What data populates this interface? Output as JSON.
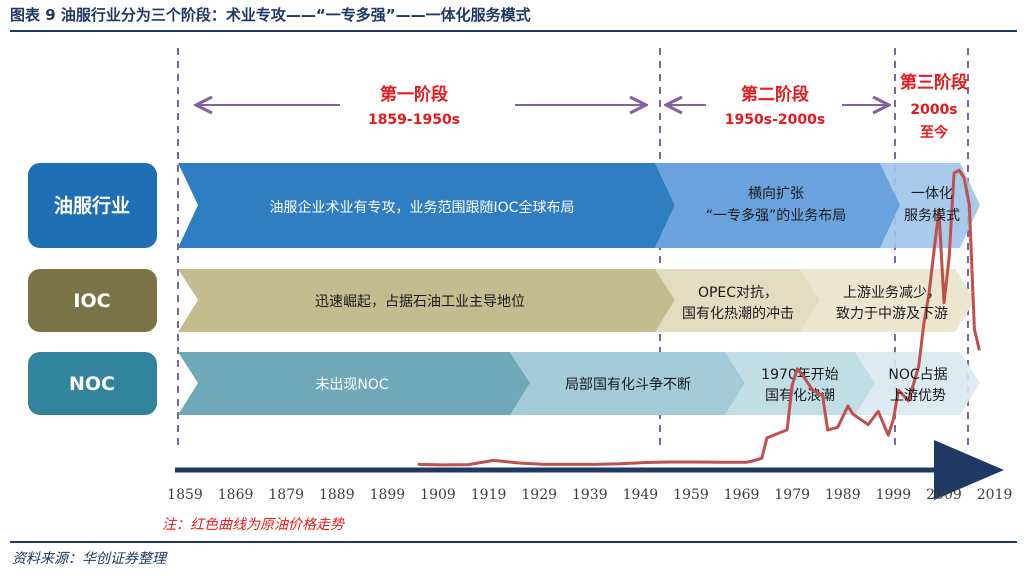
{
  "title": "图表 9 油服行业分为三个阶段：术业专攻——“一专多强”——一体化服务模式",
  "source": "资料来源：华创证券整理",
  "note": "注：红色曲线为原油价格走势",
  "stages": [
    {
      "name": "第一阶段",
      "period": "1859-1950s"
    },
    {
      "name": "第二阶段",
      "period": "1950s-2000s"
    },
    {
      "name": "第三阶段",
      "period_line1": "2000s",
      "period_line2": "至今"
    }
  ],
  "rows": [
    {
      "label": "油服行业",
      "color": "#1f6fb5",
      "arrows": [
        {
          "lines": [
            "油服企业术业有专攻，业务范围跟随IOC全球布局"
          ]
        },
        {
          "lines": [
            "横向扩张",
            "“一专多强”的业务布局"
          ]
        },
        {
          "lines": [
            "一体化",
            "服务模式"
          ]
        }
      ]
    },
    {
      "label": "IOC",
      "color": "#7a7448",
      "arrows": [
        {
          "lines": [
            "迅速崛起，占据石油工业主导地位"
          ]
        },
        {
          "lines": [
            "OPEC对抗，",
            "国有化热潮的冲击"
          ]
        },
        {
          "lines": [
            "上游业务减少，",
            "致力于中游及下游"
          ]
        }
      ]
    },
    {
      "label": "NOC",
      "color": "#31849b",
      "arrows": [
        {
          "lines": [
            "未出现NOC"
          ]
        },
        {
          "lines": [
            "局部国有化斗争不断"
          ]
        },
        {
          "lines": [
            "1970年开始",
            "国有化浪潮"
          ]
        },
        {
          "lines": [
            "NOC占据",
            "上游优势"
          ]
        }
      ]
    }
  ],
  "x_ticks": [
    "1859",
    "1869",
    "1879",
    "1889",
    "1899",
    "1909",
    "1919",
    "1929",
    "1939",
    "1949",
    "1959",
    "1969",
    "1979",
    "1989",
    "1999",
    "2009",
    "2019"
  ],
  "oil_price_series": {
    "color": "#c0504d",
    "points": [
      [
        1905,
        1.0
      ],
      [
        1910,
        0.8
      ],
      [
        1915,
        0.9
      ],
      [
        1920,
        2.5
      ],
      [
        1925,
        1.5
      ],
      [
        1930,
        1.0
      ],
      [
        1935,
        1.0
      ],
      [
        1940,
        1.0
      ],
      [
        1945,
        1.2
      ],
      [
        1950,
        1.7
      ],
      [
        1955,
        1.9
      ],
      [
        1960,
        1.9
      ],
      [
        1965,
        1.8
      ],
      [
        1970,
        1.8
      ],
      [
        1971,
        2.2
      ],
      [
        1973,
        3.3
      ],
      [
        1974,
        11
      ],
      [
        1978,
        14
      ],
      [
        1979,
        31
      ],
      [
        1980,
        37
      ],
      [
        1981,
        35
      ],
      [
        1983,
        29
      ],
      [
        1985,
        27
      ],
      [
        1986,
        14
      ],
      [
        1988,
        15
      ],
      [
        1990,
        23
      ],
      [
        1991,
        20
      ],
      [
        1994,
        16
      ],
      [
        1996,
        21
      ],
      [
        1998,
        12
      ],
      [
        1999,
        18
      ],
      [
        2000,
        29
      ],
      [
        2002,
        25
      ],
      [
        2004,
        38
      ],
      [
        2005,
        54
      ],
      [
        2006,
        65
      ],
      [
        2008,
        97
      ],
      [
        2009,
        62
      ],
      [
        2010,
        79
      ],
      [
        2011,
        111
      ],
      [
        2012,
        112
      ],
      [
        2013,
        109
      ],
      [
        2014,
        99
      ],
      [
        2015,
        52
      ],
      [
        2016,
        44
      ]
    ]
  }
}
